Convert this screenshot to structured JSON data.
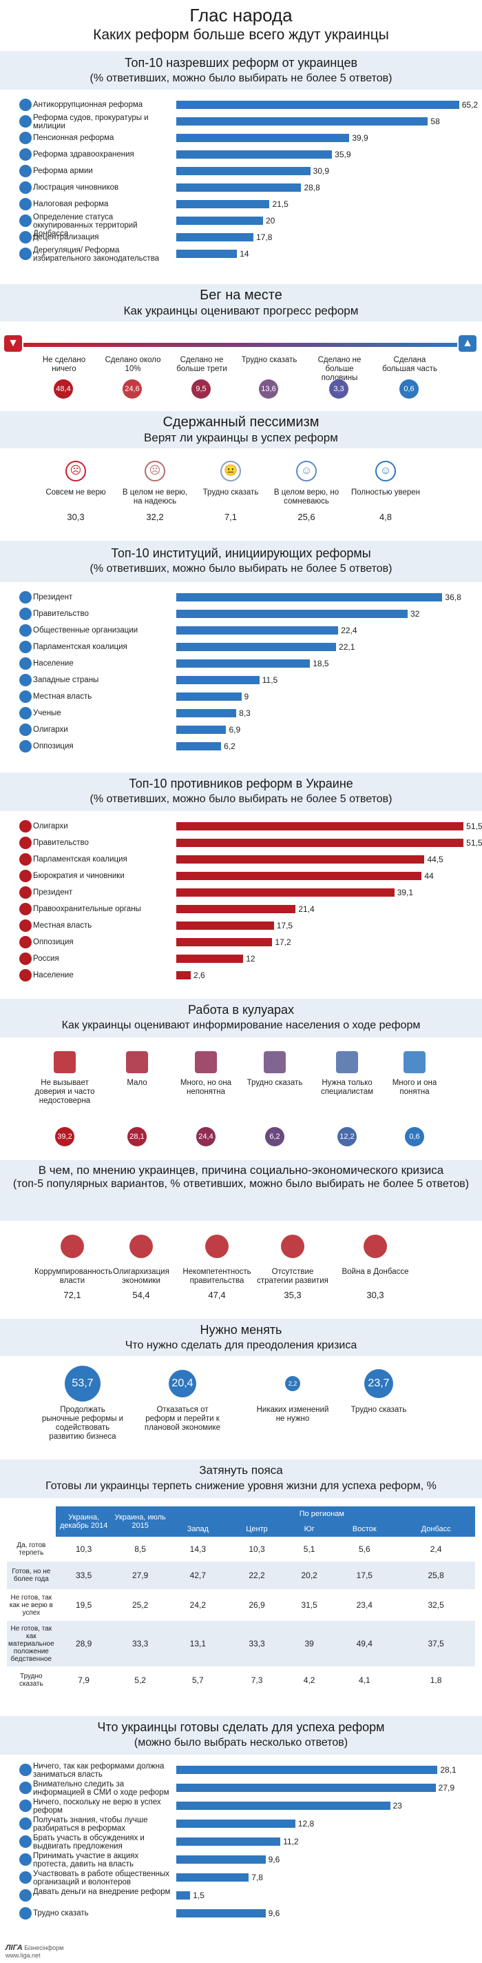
{
  "title": {
    "main": "Глас народа",
    "sub": "Каких реформ больше всего ждут украинцы"
  },
  "colors": {
    "blue": "#2f77be",
    "red": "#b41b23",
    "header_bg": "#e8eef5",
    "scale_red": "#c6202b",
    "scale_blue": "#2f77be"
  },
  "s1": {
    "title": "Топ-10 назревших реформ от украинцев",
    "sub": "(% ответивших, можно было выбирать не более 5 ответов)"
  },
  "s2": {
    "title": "Бег на месте",
    "sub": "Как украинцы оценивают прогресс реформ",
    "items": [
      {
        "label": "Не сделано ничего",
        "value": "48,4",
        "color": "#b41b23"
      },
      {
        "label": "Сделано около 10%",
        "value": "24,6",
        "color": "#c23b43"
      },
      {
        "label": "Сделано не больше трети",
        "value": "9,5",
        "color": "#9b2d4a"
      },
      {
        "label": "Трудно сказать",
        "value": "13,6",
        "color": "#7e5a8a"
      },
      {
        "label": "Сделано не больше половины",
        "value": "3,3",
        "color": "#5a59a3"
      },
      {
        "label": "Сделана большая часть",
        "value": "0,6",
        "color": "#2f77be"
      }
    ]
  },
  "s3": {
    "title": "Сдержанный пессимизм",
    "sub": "Верят ли украинцы в успех реформ",
    "items": [
      {
        "label": "Совсем не верю",
        "value": "30,3",
        "icon": "angry-face-icon",
        "color": "#c6202b"
      },
      {
        "label": "В целом не верю, на надеюсь",
        "value": "32,2",
        "icon": "sad-face-icon",
        "color": "#b66b6b"
      },
      {
        "label": "Трудно сказать",
        "value": "7,1",
        "icon": "neutral-face-icon",
        "color": "#8b9cbb"
      },
      {
        "label": "В целом верю, но сомневаюсь",
        "value": "25,6",
        "icon": "slight-smile-face-icon",
        "color": "#5c8ac4"
      },
      {
        "label": "Полностью уверен",
        "value": "4,8",
        "icon": "smile-face-icon",
        "color": "#2f77be"
      }
    ]
  },
  "s4": {
    "title": "Топ-10 институций, инициирующих реформы",
    "sub": "(% ответивших, можно было выбирать не более 5 ответов)"
  },
  "s5": {
    "title": "Топ-10 противников реформ в Украине",
    "sub": "(% ответивших, можно было выбирать не более 5 ответов)"
  },
  "s6": {
    "title": "Работа в кулуарах",
    "sub": "Как украинцы оценивают информирование населения о ходе реформ",
    "items": [
      {
        "label": "Не вызывает доверия и часто недостоверна",
        "value": "39,2",
        "color": "#b41b23",
        "icon": "newspaper-icon"
      },
      {
        "label": "Мало",
        "value": "28,1",
        "color": "#a7243a",
        "icon": "megaphone-icon"
      },
      {
        "label": "Много, но она непонятна",
        "value": "24,4",
        "color": "#8f2d52",
        "icon": "speaker-person-icon"
      },
      {
        "label": "Трудно сказать",
        "value": "6,2",
        "color": "#6b4a7e",
        "icon": "question-person-icon"
      },
      {
        "label": "Нужна только специалистам",
        "value": "12,2",
        "color": "#4a6aa8",
        "icon": "specialist-icon"
      },
      {
        "label": "Много и она понятна",
        "value": "0,6",
        "color": "#2f77be",
        "icon": "reader-icon"
      }
    ]
  },
  "s7": {
    "title": "В чем, по мнению украинцев, причина социально-экономического кризиса",
    "sub": "(топ-5 популярных вариантов, % ответивших, можно было выбирать не более 5 ответов)",
    "items": [
      {
        "label": "Коррумпированность власти",
        "value": "72,1",
        "icon": "handshake-money-icon"
      },
      {
        "label": "Олигархизация экономики",
        "value": "54,4",
        "icon": "oligarch-icon"
      },
      {
        "label": "Некомпетентность правительства",
        "value": "47,4",
        "icon": "government-icon"
      },
      {
        "label": "Отсутствие стратегии развития",
        "value": "35,3",
        "icon": "strategy-icon"
      },
      {
        "label": "Война в Донбассе",
        "value": "30,3",
        "icon": "cannon-icon"
      }
    ]
  },
  "s8": {
    "title": "Нужно менять",
    "sub": "Что нужно сделать для преодоления кризиса",
    "items": [
      {
        "value": "53,7",
        "label": "Продолжать рыночные реформы и содействовать развитию бизнеса"
      },
      {
        "value": "20,4",
        "label": "Отказаться от реформ и перейти к плановой экономике"
      },
      {
        "value": "2,2",
        "label": "Никаких изменений не нужно"
      },
      {
        "value": "23,7",
        "label": "Трудно сказать"
      }
    ]
  },
  "s9": {
    "title": "Затянуть пояса",
    "sub": "Готовы ли украинцы терпеть снижение уровня жизни для успеха реформ, %",
    "cols": [
      "Украина, декабрь 2014",
      "Украина, июль 2015",
      "По регионам",
      "Запад",
      "Центр",
      "Юг",
      "Восток",
      "Донбасс"
    ],
    "rows": [
      {
        "label": "Да, готов терпеть",
        "v": [
          "10,3",
          "8,5",
          "14,3",
          "10,3",
          "5,1",
          "5,6",
          "2,4"
        ]
      },
      {
        "label": "Готов, но не более года",
        "v": [
          "33,5",
          "27,9",
          "42,7",
          "22,2",
          "20,2",
          "17,5",
          "25,8"
        ]
      },
      {
        "label": "Не готов, так как не верю в успех",
        "v": [
          "19,5",
          "25,2",
          "24,2",
          "26,9",
          "31,5",
          "23,4",
          "32,5"
        ]
      },
      {
        "label": "Не готов, так как материальное положение бедственное",
        "v": [
          "28,9",
          "33,3",
          "13,1",
          "33,3",
          "39",
          "49,4",
          "37,5"
        ]
      },
      {
        "label": "Трудно сказать",
        "v": [
          "7,9",
          "5,2",
          "5,7",
          "7,3",
          "4,2",
          "4,1",
          "1,8"
        ]
      }
    ]
  },
  "s10": {
    "title": "Что украинцы готовы сделать для успеха реформ",
    "sub": "(можно было выбрать несколько ответов)"
  },
  "footer": {
    "brand": "ЛІГА",
    "brand2": "Бізнесінформ",
    "url": "www.liga.net"
  },
  "chart_data": [
    {
      "type": "bar",
      "title": "Топ-10 назревших реформ от украинцев",
      "categories": [
        "Антикоррупционная реформа",
        "Реформа судов, прокуратуры и милиции",
        "Пенсионная реформа",
        "Реформа здравоохранения",
        "Реформа армии",
        "Люстрация чиновников",
        "Налоговая реформа",
        "Определение статуса оккупированных территорий Донбасса",
        "Децентрализация",
        "Дерегуляция/ Реформа избирательного законодательства"
      ],
      "values": [
        65.2,
        58,
        39.9,
        35.9,
        30.9,
        28.8,
        21.5,
        20,
        17.8,
        14
      ],
      "labels": [
        "65,2",
        "58",
        "39,9",
        "35,9",
        "30,9",
        "28,8",
        "21,5",
        "20",
        "17,8",
        "14"
      ],
      "icons": [
        "bulb-icon",
        "gavel-icon",
        "pension-icon",
        "medical-cross-icon",
        "helmet-icon",
        "binoculars-icon",
        "tax-icon",
        "map-icon",
        "nodes-icon",
        "ballot-icon"
      ]
    },
    {
      "type": "bar",
      "title": "Топ-10 институций, инициирующих реформы",
      "categories": [
        "Президент",
        "Правительство",
        "Общественные организации",
        "Парламентская коалиция",
        "Население",
        "Западные страны",
        "Местная власть",
        "Ученые",
        "Олигархи",
        "Оппозиция"
      ],
      "values": [
        36.8,
        32,
        22.4,
        22.1,
        18.5,
        11.5,
        9,
        8.3,
        6.9,
        6.2
      ],
      "labels": [
        "36,8",
        "32",
        "22,4",
        "22,1",
        "18,5",
        "11,5",
        "9",
        "8,3",
        "6,9",
        "6,2"
      ],
      "icons": [
        "president-icon",
        "government-icon",
        "ngo-icon",
        "parliament-icon",
        "people-icon",
        "globe-icon",
        "local-power-icon",
        "scientist-icon",
        "oligarch-icon",
        "opposition-icon"
      ]
    },
    {
      "type": "bar",
      "title": "Топ-10 противников реформ в Украине",
      "categories": [
        "Олигархи",
        "Правительство",
        "Парламентская коалиция",
        "Бюрократия и чиновники",
        "Президент",
        "Правоохранительные органы",
        "Местная власть",
        "Оппозиция",
        "Россия",
        "Население"
      ],
      "values": [
        51.5,
        51.5,
        44.5,
        44,
        39.1,
        21.4,
        17.5,
        17.2,
        12,
        2.6
      ],
      "labels": [
        "51,5",
        "51,5",
        "44,5",
        "44",
        "39,1",
        "21,4",
        "17,5",
        "17,2",
        "12",
        "2,6"
      ],
      "icons": [
        "oligarch-icon",
        "government-icon",
        "parliament-icon",
        "bureaucrat-icon",
        "president-icon",
        "police-icon",
        "local-power-icon",
        "opposition-icon",
        "russia-icon",
        "people-icon"
      ]
    },
    {
      "type": "bar",
      "title": "Что украинцы готовы сделать для успеха реформ",
      "categories": [
        "Ничего, так как реформами должна заниматься власть",
        "Внимательно следить за информацией в СМИ о ходе реформ",
        "Ничего, поскольку не верю в успех реформ",
        "Получать знания, чтобы лучше разбираться в реформах",
        "Брать участь в обсуждениях и выдвигать предложения",
        "Принимать участие в акциях протеста, давить на власть",
        "Участвовать в работе общественных организаций и волонтеров",
        "Давать деньги на внедрение реформ",
        "Трудно сказать"
      ],
      "values": [
        28.1,
        27.9,
        23,
        12.8,
        11.2,
        9.6,
        7.8,
        1.5,
        9.6
      ],
      "labels": [
        "28,1",
        "27,9",
        "23",
        "12,8",
        "11,2",
        "9,6",
        "7,8",
        "1,5",
        "9,6"
      ],
      "icons": [
        "stop-icon",
        "eye-icon",
        "no-icon",
        "book-icon",
        "discussion-icon",
        "protest-icon",
        "volunteer-icon",
        "money-icon",
        "question-icon"
      ]
    }
  ]
}
